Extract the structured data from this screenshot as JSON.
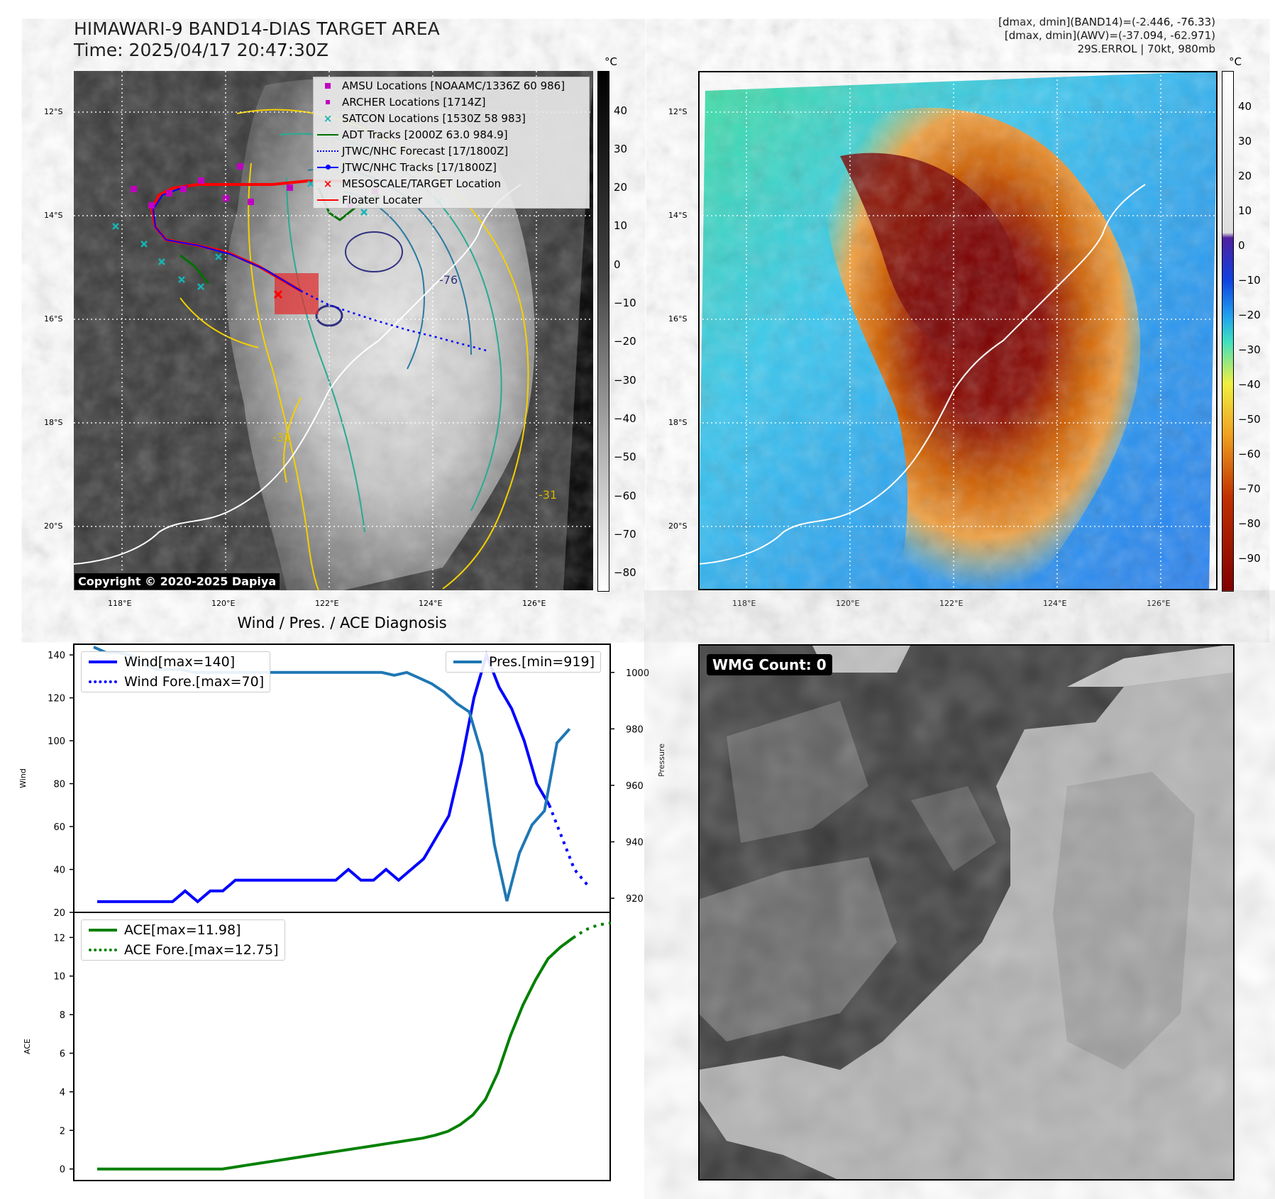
{
  "header": {
    "title_line1": "HIMAWARI-9 BAND14-DIAS TARGET AREA",
    "title_line2": "Time: 2025/04/17 20:47:30Z",
    "info_line1": "[dmax, dmin](BAND14)=(-2.446, -76.33)",
    "info_line2": "[dmax, dmin](AWV)=(-37.094, -62.971)",
    "info_line3": "29S.ERROL | 70kt, 980mb"
  },
  "map": {
    "lat_labels": [
      "12°S",
      "14°S",
      "16°S",
      "18°S",
      "20°S"
    ],
    "lon_labels": [
      "118°E",
      "120°E",
      "122°E",
      "124°E",
      "126°E"
    ],
    "contour_labels": [
      "-76",
      "-31",
      "-31"
    ],
    "copyright": "Copyright © 2020-2025 Dapiya",
    "colorbar_unit": "°C",
    "gray_colorbar_ticks": [
      "40",
      "30",
      "20",
      "10",
      "0",
      "−10",
      "−20",
      "−30",
      "−40",
      "−50",
      "−60",
      "−70",
      "−80"
    ],
    "color_colorbar_ticks": [
      "40",
      "30",
      "20",
      "10",
      "0",
      "−10",
      "−20",
      "−30",
      "−40",
      "−50",
      "−60",
      "−70",
      "−80",
      "−90"
    ]
  },
  "legend": {
    "items": [
      {
        "label": "AMSU Locations [NOAAMC/1336Z 60 986]",
        "symbol": "square",
        "color": "#c000c0"
      },
      {
        "label": "ARCHER Locations [1714Z]",
        "symbol": "square-small",
        "color": "#c000c0"
      },
      {
        "label": "SATCON Locations [1530Z 58 983]",
        "symbol": "x",
        "color": "#17b4b4"
      },
      {
        "label": "ADT Tracks [2000Z 63.0 984.9]",
        "symbol": "line",
        "color": "#007000"
      },
      {
        "label": "JTWC/NHC Forecast [17/1800Z]",
        "symbol": "dotted",
        "color": "#0000ff"
      },
      {
        "label": "JTWC/NHC Tracks [17/1800Z]",
        "symbol": "line-dot",
        "color": "#0000ff"
      },
      {
        "label": "MESOSCALE/TARGET Location",
        "symbol": "x",
        "color": "#ff0000"
      },
      {
        "label": "Floater Locater",
        "symbol": "line",
        "color": "#ff0000"
      }
    ]
  },
  "wmg": {
    "label": "WMG Count: 0"
  },
  "chart_data": [
    {
      "type": "line",
      "title": "Wind / Pres. / ACE Diagnosis",
      "ylabel": "Wind",
      "y2label": "Pressure",
      "ylim": [
        20,
        145
      ],
      "y2lim": [
        915,
        1010
      ],
      "y_ticks": [
        "140",
        "120",
        "100",
        "80",
        "60",
        "40",
        "20"
      ],
      "y2_ticks": [
        "1000",
        "980",
        "960",
        "940",
        "920"
      ],
      "series": [
        {
          "name": "Wind[max=140]",
          "color": "#0000ff",
          "style": "solid",
          "values": [
            25,
            25,
            25,
            25,
            25,
            25,
            25,
            30,
            25,
            30,
            30,
            35,
            35,
            35,
            35,
            35,
            35,
            35,
            35,
            35,
            40,
            35,
            35,
            40,
            35,
            40,
            45,
            55,
            65,
            90,
            120,
            140,
            125,
            115,
            100,
            80,
            70
          ]
        },
        {
          "name": "Wind Fore.[max=70]",
          "color": "#0000ff",
          "style": "dotted",
          "values": [
            70,
            55,
            40,
            33
          ],
          "start_index": 36
        },
        {
          "name": "Pres.[min=919]",
          "color": "#1f77b4",
          "style": "solid",
          "axis": "right",
          "values": [
            1009,
            1007,
            1007,
            1006,
            1003,
            1001,
            1001,
            1001,
            1000,
            1000,
            1000,
            1000,
            1000,
            1000,
            1000,
            1000,
            1000,
            1000,
            1000,
            1000,
            1000,
            1000,
            1000,
            1000,
            999,
            1000,
            998,
            996,
            993,
            989,
            986,
            971,
            939,
            919,
            936,
            946,
            951,
            975,
            980
          ]
        }
      ]
    },
    {
      "type": "line",
      "ylabel": "ACE",
      "ylim": [
        -0.6,
        13.3
      ],
      "y_ticks": [
        "12",
        "10",
        "8",
        "6",
        "4",
        "2",
        "0"
      ],
      "series": [
        {
          "name": "ACE[max=11.98]",
          "color": "#008000",
          "style": "solid",
          "values": [
            0,
            0,
            0,
            0,
            0,
            0,
            0,
            0,
            0,
            0,
            0,
            0.1,
            0.2,
            0.3,
            0.4,
            0.5,
            0.6,
            0.7,
            0.8,
            0.9,
            1.0,
            1.1,
            1.2,
            1.3,
            1.4,
            1.5,
            1.6,
            1.75,
            1.95,
            2.3,
            2.8,
            3.6,
            5.0,
            6.9,
            8.5,
            9.8,
            10.9,
            11.5,
            11.98
          ]
        },
        {
          "name": "ACE Fore.[max=12.75]",
          "color": "#008000",
          "style": "dotted",
          "values": [
            11.98,
            12.4,
            12.65,
            12.75
          ],
          "start_index": 38
        }
      ]
    }
  ]
}
